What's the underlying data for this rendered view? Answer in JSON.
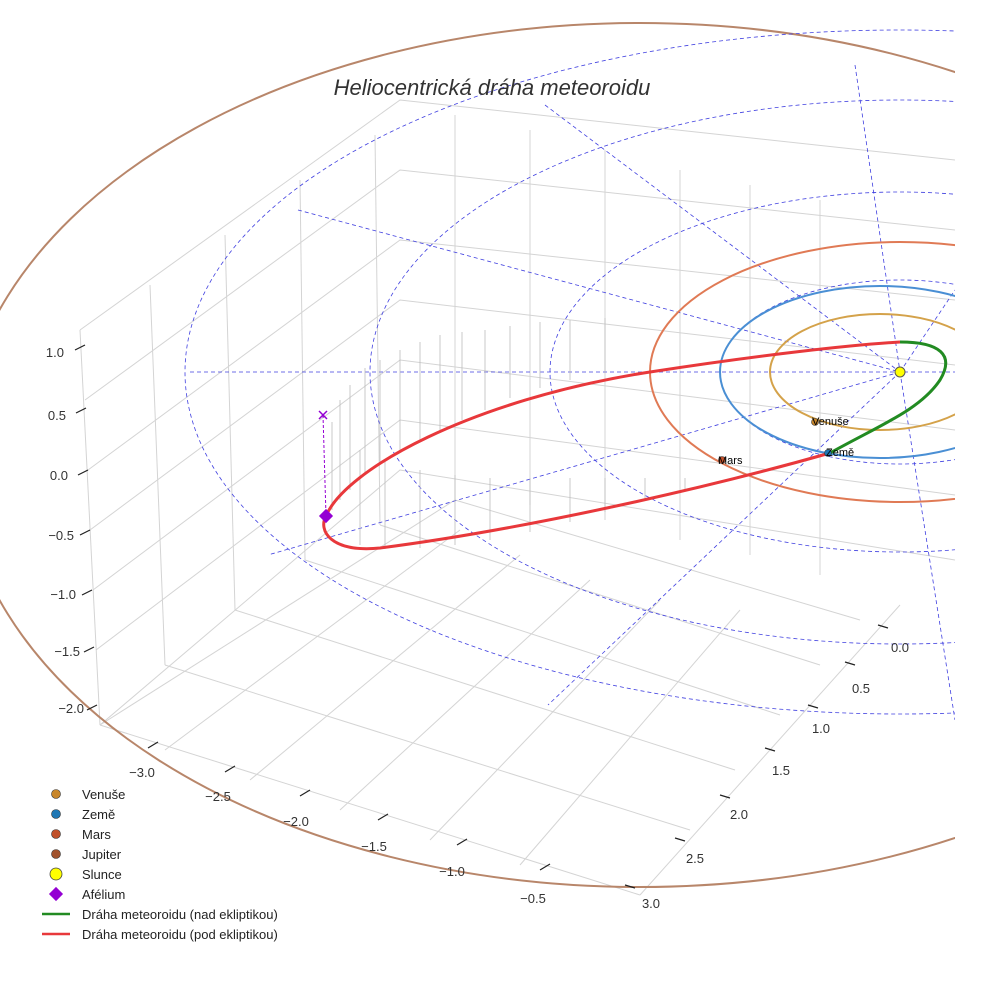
{
  "chart_data": {
    "type": "3d-line",
    "title": "Heliocentrická dráha meteoroidu",
    "axes": {
      "x_ticks": [
        "−3.0",
        "−2.5",
        "−2.0",
        "−1.5",
        "−1.0",
        "−0.5"
      ],
      "y_ticks": [
        "0.0",
        "0.5",
        "1.0",
        "1.5",
        "2.0",
        "2.5",
        "3.0"
      ],
      "z_ticks": [
        "1.0",
        "0.5",
        "0.0",
        "−0.5",
        "−1.0",
        "−1.5",
        "−2.0"
      ]
    },
    "planets": [
      {
        "name": "Venuše",
        "a": 0.72,
        "color": "#d4a24a",
        "marker": "#c8862a",
        "show_label": true
      },
      {
        "name": "Země",
        "a": 1.0,
        "color": "#4a8fd4",
        "marker": "#1f77b4",
        "show_label": true
      },
      {
        "name": "Mars",
        "a": 1.52,
        "color": "#e07a55",
        "marker": "#c0502a",
        "show_label": true
      },
      {
        "name": "Jupiter",
        "a": 5.2,
        "color": "#b8866a",
        "marker": "#a0522d",
        "show_label": false
      }
    ],
    "sun": {
      "name": "Slunce",
      "color": "#ffff00"
    },
    "aphelion": {
      "name": "Afélium",
      "color": "#9400d3"
    },
    "meteoroid_orbit": {
      "above_ecliptic": {
        "name": "Dráha meteoroidu (nad ekliptikou)",
        "color": "#228b22"
      },
      "below_ecliptic": {
        "name": "Dráha meteoroidu (pod ekliptikou)",
        "color": "#e8383b"
      }
    },
    "legend": [
      {
        "label": "Venuše",
        "kind": "dot",
        "color": "#c8862a"
      },
      {
        "label": "Země",
        "kind": "dot",
        "color": "#1f77b4"
      },
      {
        "label": "Mars",
        "kind": "dot",
        "color": "#c0502a"
      },
      {
        "label": "Jupiter",
        "kind": "dot",
        "color": "#a0522d"
      },
      {
        "label": "Slunce",
        "kind": "sun",
        "color": "#ffff00"
      },
      {
        "label": "Afélium",
        "kind": "diamond",
        "color": "#9400d3"
      },
      {
        "label": "Dráha meteoroidu (nad ekliptikou)",
        "kind": "line",
        "color": "#228b22"
      },
      {
        "label": "Dráha meteoroidu (pod ekliptikou)",
        "kind": "line",
        "color": "#e8383b"
      }
    ]
  }
}
